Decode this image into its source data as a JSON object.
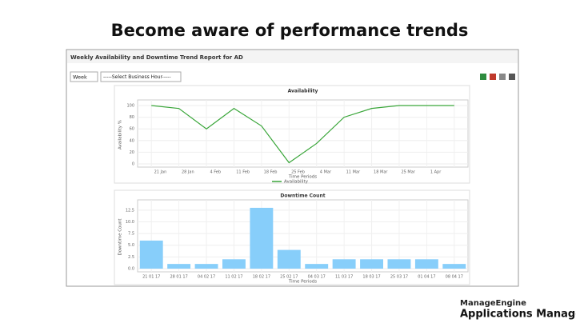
{
  "slide": {
    "title": "Become aware of performance trends",
    "brand": "ManageEngine",
    "product": "Applications Manager"
  },
  "report": {
    "title": "Weekly Availability and Downtime Trend Report for AD",
    "period_select": "Week",
    "hour_select": "-----Select Business Hour-----"
  },
  "chart_data": [
    {
      "type": "line",
      "title": "Availability",
      "y_label": "Availability %",
      "x_label": "Time Periods",
      "categories": [
        "21 Jan",
        "28 Jan",
        "4 Feb",
        "11 Feb",
        "18 Feb",
        "25 Feb",
        "4 Mar",
        "11 Mar",
        "18 Mar",
        "25 Mar",
        "1 Apr",
        null
      ],
      "series": [
        {
          "name": "Availability",
          "color": "#3aa63a",
          "values": [
            100,
            95,
            60,
            95,
            65,
            2,
            35,
            80,
            95,
            100,
            100,
            100
          ]
        }
      ],
      "ylim": [
        0,
        100
      ],
      "yticks": [
        0,
        20,
        40,
        60,
        80,
        100
      ],
      "grid": true
    },
    {
      "type": "bar",
      "title": "Downtime Count",
      "y_label": "Downtime Count",
      "x_label": "Time Periods",
      "categories": [
        "21 01 17",
        "28 01 17",
        "04 02 17",
        "11 02 17",
        "18 02 17",
        "25 02 17",
        "04 03 17",
        "11 03 17",
        "18 03 17",
        "25 03 17",
        "01 04 17",
        "08 04 17"
      ],
      "values": [
        6,
        1,
        1,
        2,
        13,
        4,
        1,
        2,
        2,
        2,
        2,
        1
      ],
      "color": "#87cefa",
      "ylim": [
        0,
        13.5
      ],
      "yticks": [
        {
          "value": 0,
          "label": "0.0"
        },
        2.5,
        {
          "value": 5,
          "label": "5.0"
        },
        7.5,
        {
          "value": 10,
          "label": "10.0"
        },
        12.5
      ],
      "grid": true
    }
  ]
}
